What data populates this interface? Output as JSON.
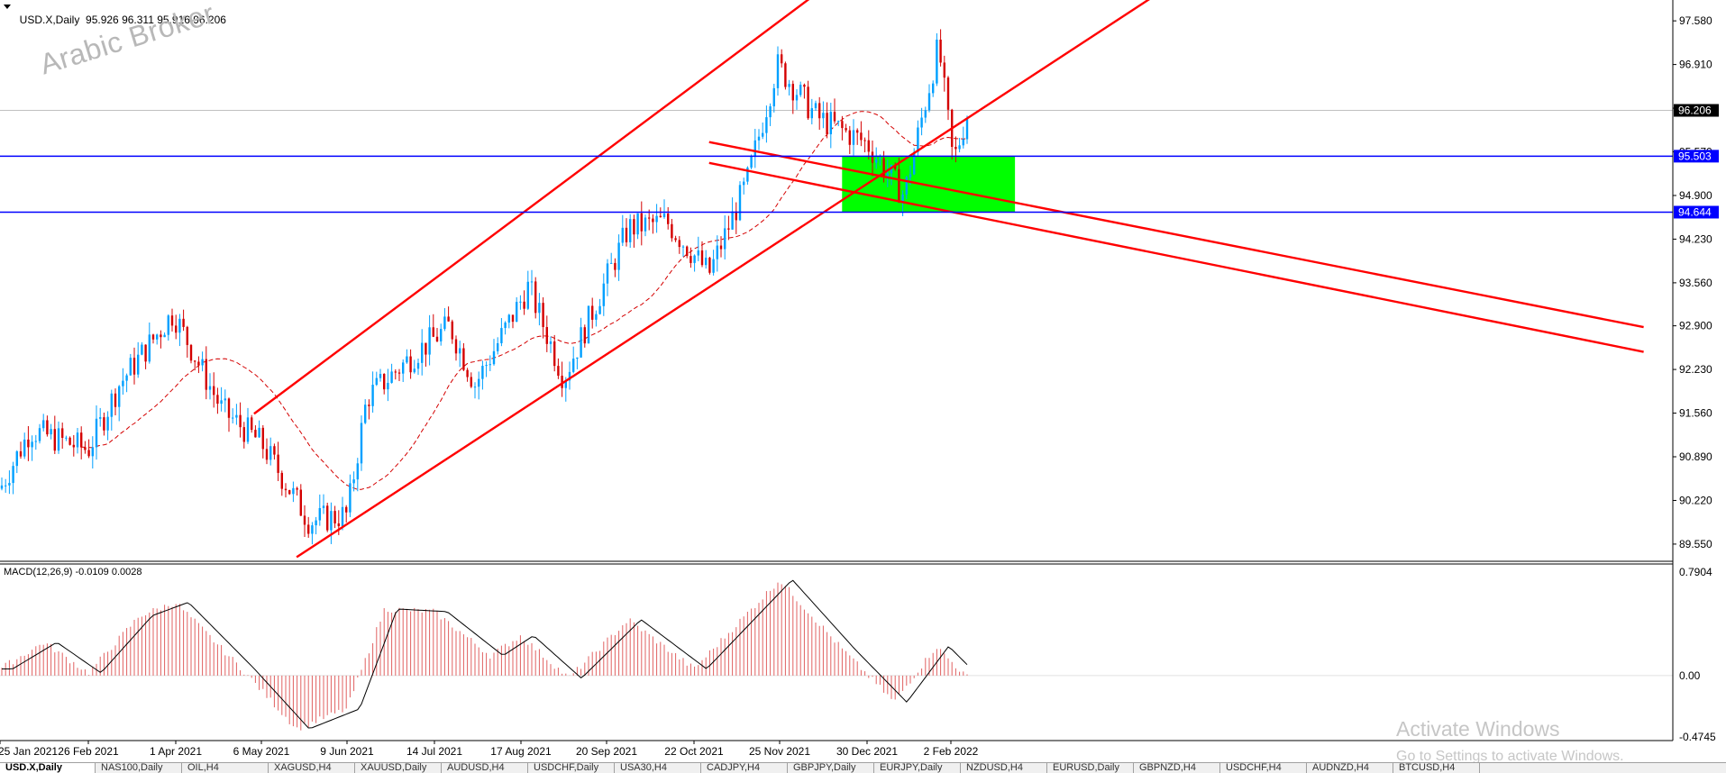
{
  "header": {
    "symbol": "USD.X,Daily",
    "ohlc": "95.926 96.311 95.916 96.206"
  },
  "watermark": "Arabic Broker",
  "price_axis": {
    "ticks": [
      "97.580",
      "96.910",
      "96.240",
      "95.570",
      "94.900",
      "94.230",
      "93.560",
      "92.900",
      "92.230",
      "91.560",
      "90.890",
      "90.220",
      "89.550"
    ],
    "current_price": "96.206",
    "level_upper": "95.503",
    "level_lower": "94.644"
  },
  "macd": {
    "label": "MACD(12,26,9) -0.0109 0.0028",
    "ticks": [
      "0.7904",
      "0.00",
      "-0.4745"
    ]
  },
  "time_axis": [
    "25 Jan 2021",
    "26 Feb 2021",
    "1 Apr 2021",
    "6 May 2021",
    "9 Jun 2021",
    "14 Jul 2021",
    "17 Aug 2021",
    "20 Sep 2021",
    "22 Oct 2021",
    "25 Nov 2021",
    "30 Dec 2021",
    "2 Feb 2022"
  ],
  "windows_notice": {
    "title": "Activate Windows",
    "subtitle": "Go to Settings to activate Windows."
  },
  "tabs": [
    "USD.X,Daily",
    "NAS100,Daily",
    "OIL,H4",
    "XAGUSD,H4",
    "XAUUSD,Daily",
    "AUDUSD,H4",
    "USDCHF,Daily",
    "USA30,H4",
    "CADJPY,H4",
    "GBPJPY,Daily",
    "EURJPY,Daily",
    "NZDUSD,H4",
    "EURUSD,Daily",
    "GBPNZD,H4",
    "USDCHF,H4",
    "AUDNZD,H4",
    "BTCUSD,H4"
  ],
  "colors": {
    "bull": "#00a0ff",
    "bear": "#d40000",
    "trendline": "#ff0000",
    "level": "#0000ff",
    "zone": "#00ff00",
    "ma": "#d40000"
  },
  "chart_data": {
    "type": "candlestick",
    "title": "USD.X,Daily",
    "ylim": [
      89.3,
      97.9
    ],
    "ohlc_last": {
      "open": 95.926,
      "high": 96.311,
      "low": 95.916,
      "close": 96.206
    },
    "price_path": [
      {
        "date": "2021-01-25",
        "close": 90.4
      },
      {
        "date": "2021-02-05",
        "close": 91.3
      },
      {
        "date": "2021-02-26",
        "close": 91.0
      },
      {
        "date": "2021-03-10",
        "close": 92.0
      },
      {
        "date": "2021-03-31",
        "close": 93.1
      },
      {
        "date": "2021-04-20",
        "close": 91.6
      },
      {
        "date": "2021-05-06",
        "close": 91.1
      },
      {
        "date": "2021-05-25",
        "close": 89.9
      },
      {
        "date": "2021-06-09",
        "close": 90.0
      },
      {
        "date": "2021-06-17",
        "close": 91.8
      },
      {
        "date": "2021-07-07",
        "close": 92.5
      },
      {
        "date": "2021-07-20",
        "close": 92.9
      },
      {
        "date": "2021-07-30",
        "close": 92.0
      },
      {
        "date": "2021-08-20",
        "close": 93.5
      },
      {
        "date": "2021-09-03",
        "close": 92.1
      },
      {
        "date": "2021-09-28",
        "close": 94.4
      },
      {
        "date": "2021-10-12",
        "close": 94.5
      },
      {
        "date": "2021-10-28",
        "close": 93.7
      },
      {
        "date": "2021-11-12",
        "close": 95.1
      },
      {
        "date": "2021-11-24",
        "close": 96.9
      },
      {
        "date": "2021-12-10",
        "close": 96.1
      },
      {
        "date": "2021-12-30",
        "close": 95.7
      },
      {
        "date": "2022-01-14",
        "close": 94.9
      },
      {
        "date": "2022-01-28",
        "close": 97.2
      },
      {
        "date": "2022-02-03",
        "close": 95.4
      },
      {
        "date": "2022-02-09",
        "close": 96.206
      }
    ],
    "moving_average": "dashed red",
    "horizontal_levels": [
      95.503,
      94.644
    ],
    "support_zone": [
      94.644,
      95.503
    ],
    "trend_channel": "ascending red channel",
    "descending_channel": "red lines sloping down",
    "macd": {
      "params": "12,26,9",
      "main": -0.0109,
      "signal": 0.0028,
      "ylim": [
        -0.4745,
        0.7904
      ],
      "path": [
        {
          "date": "2021-01-25",
          "value": 0.05
        },
        {
          "date": "2021-02-10",
          "value": 0.25
        },
        {
          "date": "2021-02-26",
          "value": 0.02
        },
        {
          "date": "2021-03-18",
          "value": 0.45
        },
        {
          "date": "2021-04-01",
          "value": 0.55
        },
        {
          "date": "2021-04-28",
          "value": 0.05
        },
        {
          "date": "2021-05-20",
          "value": -0.4
        },
        {
          "date": "2021-06-09",
          "value": -0.25
        },
        {
          "date": "2021-06-24",
          "value": 0.5
        },
        {
          "date": "2021-07-14",
          "value": 0.48
        },
        {
          "date": "2021-08-05",
          "value": 0.15
        },
        {
          "date": "2021-08-17",
          "value": 0.3
        },
        {
          "date": "2021-09-05",
          "value": -0.02
        },
        {
          "date": "2021-09-28",
          "value": 0.42
        },
        {
          "date": "2021-10-22",
          "value": 0.05
        },
        {
          "date": "2021-11-25",
          "value": 0.72
        },
        {
          "date": "2021-12-20",
          "value": 0.2
        },
        {
          "date": "2022-01-10",
          "value": -0.2
        },
        {
          "date": "2022-01-27",
          "value": 0.22
        },
        {
          "date": "2022-02-09",
          "value": -0.02
        }
      ]
    }
  }
}
